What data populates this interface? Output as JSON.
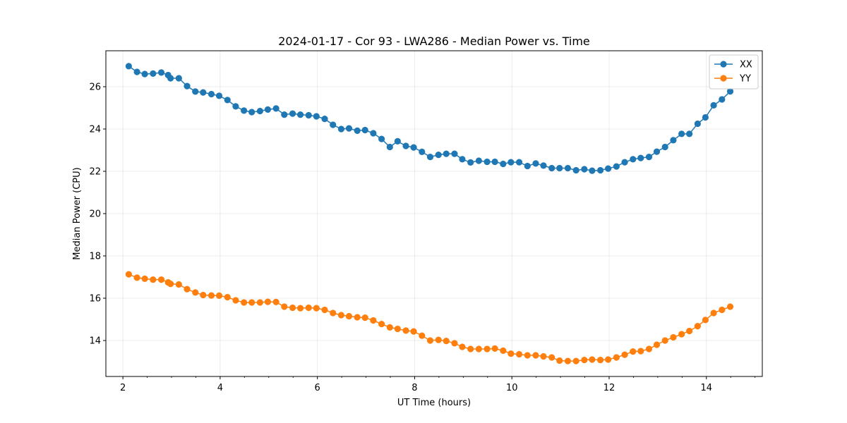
{
  "chart_data": {
    "type": "line",
    "title": "2024-01-17 - Cor 93 - LWA286 - Median Power vs. Time",
    "xlabel": "UT Time (hours)",
    "ylabel": "Median Power (CPU)",
    "xlim": [
      1.65,
      15.15
    ],
    "ylim": [
      12.3,
      27.7
    ],
    "xticks": [
      2,
      4,
      6,
      8,
      10,
      12,
      14
    ],
    "xtick_labels": [
      "2",
      "4",
      "6",
      "8",
      "10",
      "12",
      "14"
    ],
    "yticks": [
      14,
      16,
      18,
      20,
      22,
      24,
      26
    ],
    "ytick_labels": [
      "14",
      "16",
      "18",
      "20",
      "22",
      "24",
      "26"
    ],
    "grid": true,
    "legend_position": "top-right",
    "x": [
      2.12,
      2.29,
      2.45,
      2.62,
      2.79,
      2.93,
      2.98,
      3.15,
      3.32,
      3.49,
      3.65,
      3.82,
      3.98,
      4.15,
      4.32,
      4.49,
      4.65,
      4.82,
      4.98,
      5.15,
      5.32,
      5.49,
      5.65,
      5.82,
      5.98,
      6.15,
      6.32,
      6.49,
      6.65,
      6.82,
      6.98,
      7.15,
      7.32,
      7.49,
      7.65,
      7.82,
      7.98,
      8.15,
      8.32,
      8.49,
      8.65,
      8.82,
      8.98,
      9.15,
      9.32,
      9.49,
      9.65,
      9.82,
      9.98,
      10.15,
      10.32,
      10.49,
      10.65,
      10.82,
      10.98,
      11.15,
      11.32,
      11.49,
      11.65,
      11.82,
      11.98,
      12.15,
      12.32,
      12.49,
      12.65,
      12.82,
      12.98,
      13.15,
      13.32,
      13.49,
      13.65,
      13.82,
      13.98,
      14.15,
      14.32,
      14.49
    ],
    "series": [
      {
        "name": "XX",
        "color": "#1f77b4",
        "values": [
          26.97,
          26.7,
          26.6,
          26.62,
          26.67,
          26.55,
          26.4,
          26.4,
          26.03,
          25.77,
          25.73,
          25.65,
          25.57,
          25.37,
          25.07,
          24.87,
          24.8,
          24.85,
          24.92,
          24.97,
          24.68,
          24.73,
          24.68,
          24.65,
          24.6,
          24.48,
          24.2,
          24.0,
          24.03,
          23.92,
          23.95,
          23.8,
          23.53,
          23.15,
          23.42,
          23.2,
          23.13,
          22.92,
          22.68,
          22.78,
          22.83,
          22.83,
          22.57,
          22.42,
          22.5,
          22.45,
          22.45,
          22.35,
          22.43,
          22.43,
          22.25,
          22.37,
          22.27,
          22.15,
          22.15,
          22.15,
          22.05,
          22.1,
          22.03,
          22.05,
          22.13,
          22.23,
          22.43,
          22.57,
          22.63,
          22.68,
          22.93,
          23.15,
          23.47,
          23.77,
          23.77,
          24.25,
          24.55,
          25.12,
          25.4,
          25.78
        ]
      },
      {
        "name": "YY",
        "color": "#ff7f0e",
        "values": [
          17.13,
          16.97,
          16.92,
          16.88,
          16.88,
          16.75,
          16.68,
          16.65,
          16.43,
          16.27,
          16.15,
          16.13,
          16.12,
          16.05,
          15.9,
          15.8,
          15.8,
          15.8,
          15.83,
          15.82,
          15.6,
          15.55,
          15.53,
          15.55,
          15.53,
          15.45,
          15.3,
          15.2,
          15.15,
          15.1,
          15.08,
          14.95,
          14.78,
          14.62,
          14.55,
          14.47,
          14.43,
          14.23,
          14.0,
          14.03,
          13.98,
          13.87,
          13.7,
          13.6,
          13.6,
          13.6,
          13.62,
          13.52,
          13.38,
          13.35,
          13.3,
          13.3,
          13.25,
          13.2,
          13.05,
          13.03,
          13.03,
          13.08,
          13.1,
          13.08,
          13.1,
          13.2,
          13.33,
          13.48,
          13.5,
          13.6,
          13.8,
          14.0,
          14.15,
          14.3,
          14.45,
          14.68,
          14.97,
          15.3,
          15.45,
          15.6
        ]
      }
    ]
  }
}
